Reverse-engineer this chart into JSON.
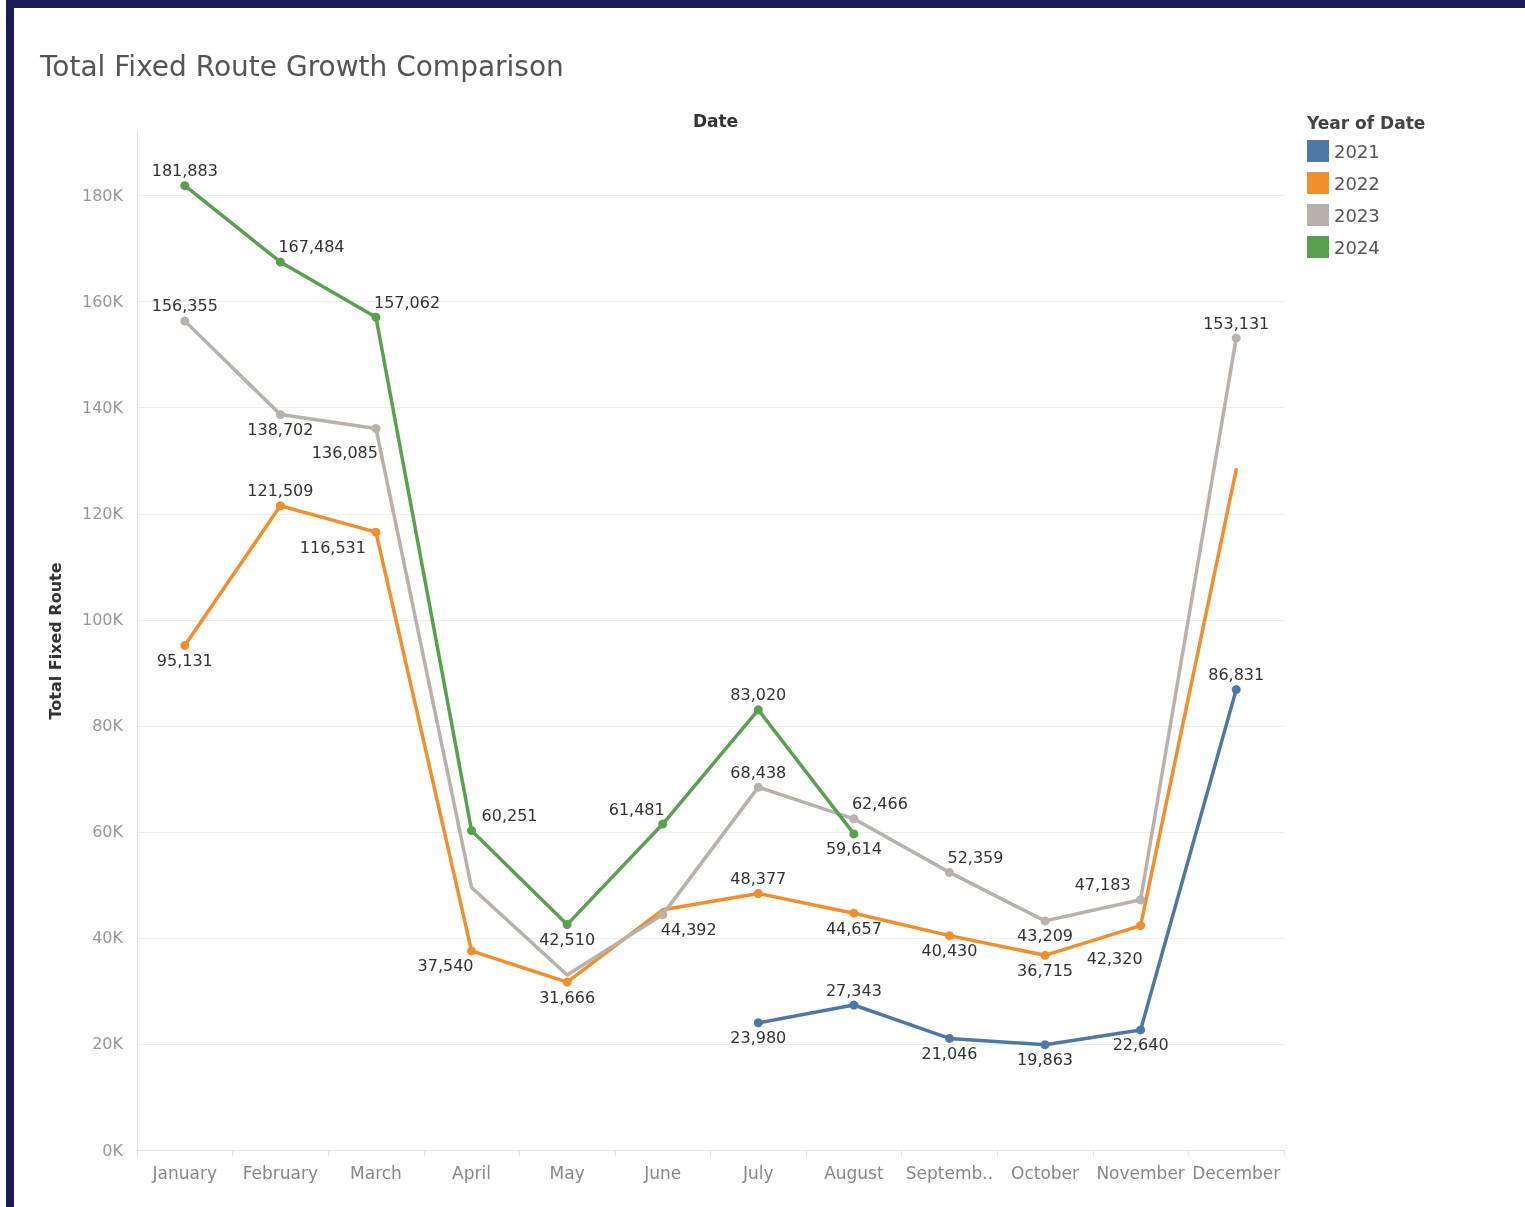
{
  "chart_data": {
    "type": "line",
    "title": "Total Fixed Route Growth Comparison",
    "xlabel": "Date",
    "ylabel": "Total Fixed Route",
    "legend_title": "Year of Date",
    "categories": [
      "January",
      "February",
      "March",
      "April",
      "May",
      "June",
      "July",
      "August",
      "Septemb..",
      "October",
      "November",
      "December"
    ],
    "series": [
      {
        "name": "2021",
        "color": "#4e79a7",
        "values": [
          null,
          null,
          null,
          null,
          null,
          null,
          23980,
          27343,
          21046,
          19863,
          22640,
          86831
        ],
        "value_labels": [
          null,
          null,
          null,
          null,
          null,
          null,
          "23,980",
          "27,343",
          "21,046",
          "19,863",
          "22,640",
          "86,831"
        ]
      },
      {
        "name": "2022",
        "color": "#f28e2b",
        "values": [
          95131,
          121509,
          116531,
          37540,
          31666,
          45300,
          48377,
          44657,
          40430,
          36715,
          42320,
          128300
        ],
        "value_labels": [
          "95,131",
          "121,509",
          "116,531",
          "37,540",
          "31,666",
          null,
          "48,377",
          "44,657",
          "40,430",
          "36,715",
          "42,320",
          null
        ]
      },
      {
        "name": "2023",
        "color": "#bab0ac",
        "values": [
          156355,
          138702,
          136085,
          49500,
          33000,
          44392,
          68438,
          62466,
          52359,
          43209,
          47183,
          153131
        ],
        "value_labels": [
          "156,355",
          "138,702",
          "136,085",
          null,
          null,
          "44,392",
          "68,438",
          "62,466",
          "52,359",
          "43,209",
          "47,183",
          "153,131"
        ]
      },
      {
        "name": "2024",
        "color": "#59a14f",
        "values": [
          181883,
          167484,
          157062,
          60251,
          42510,
          61481,
          83020,
          59614,
          null,
          null,
          null,
          null
        ],
        "value_labels": [
          "181,883",
          "167,484",
          "157,062",
          "60,251",
          "42,510",
          "61,481",
          "83,020",
          "59,614",
          null,
          null,
          null,
          null
        ]
      }
    ],
    "ylim": [
      0,
      192000
    ],
    "yticks": [
      {
        "value": 0,
        "label": "0K"
      },
      {
        "value": 20000,
        "label": "20K"
      },
      {
        "value": 40000,
        "label": "40K"
      },
      {
        "value": 60000,
        "label": "60K"
      },
      {
        "value": 80000,
        "label": "80K"
      },
      {
        "value": 100000,
        "label": "100K"
      },
      {
        "value": 120000,
        "label": "120K"
      },
      {
        "value": 140000,
        "label": "140K"
      },
      {
        "value": 160000,
        "label": "160K"
      },
      {
        "value": 180000,
        "label": "180K"
      }
    ],
    "grid": "y",
    "legend": "top right",
    "marker": "circle",
    "line_style": "solid"
  }
}
